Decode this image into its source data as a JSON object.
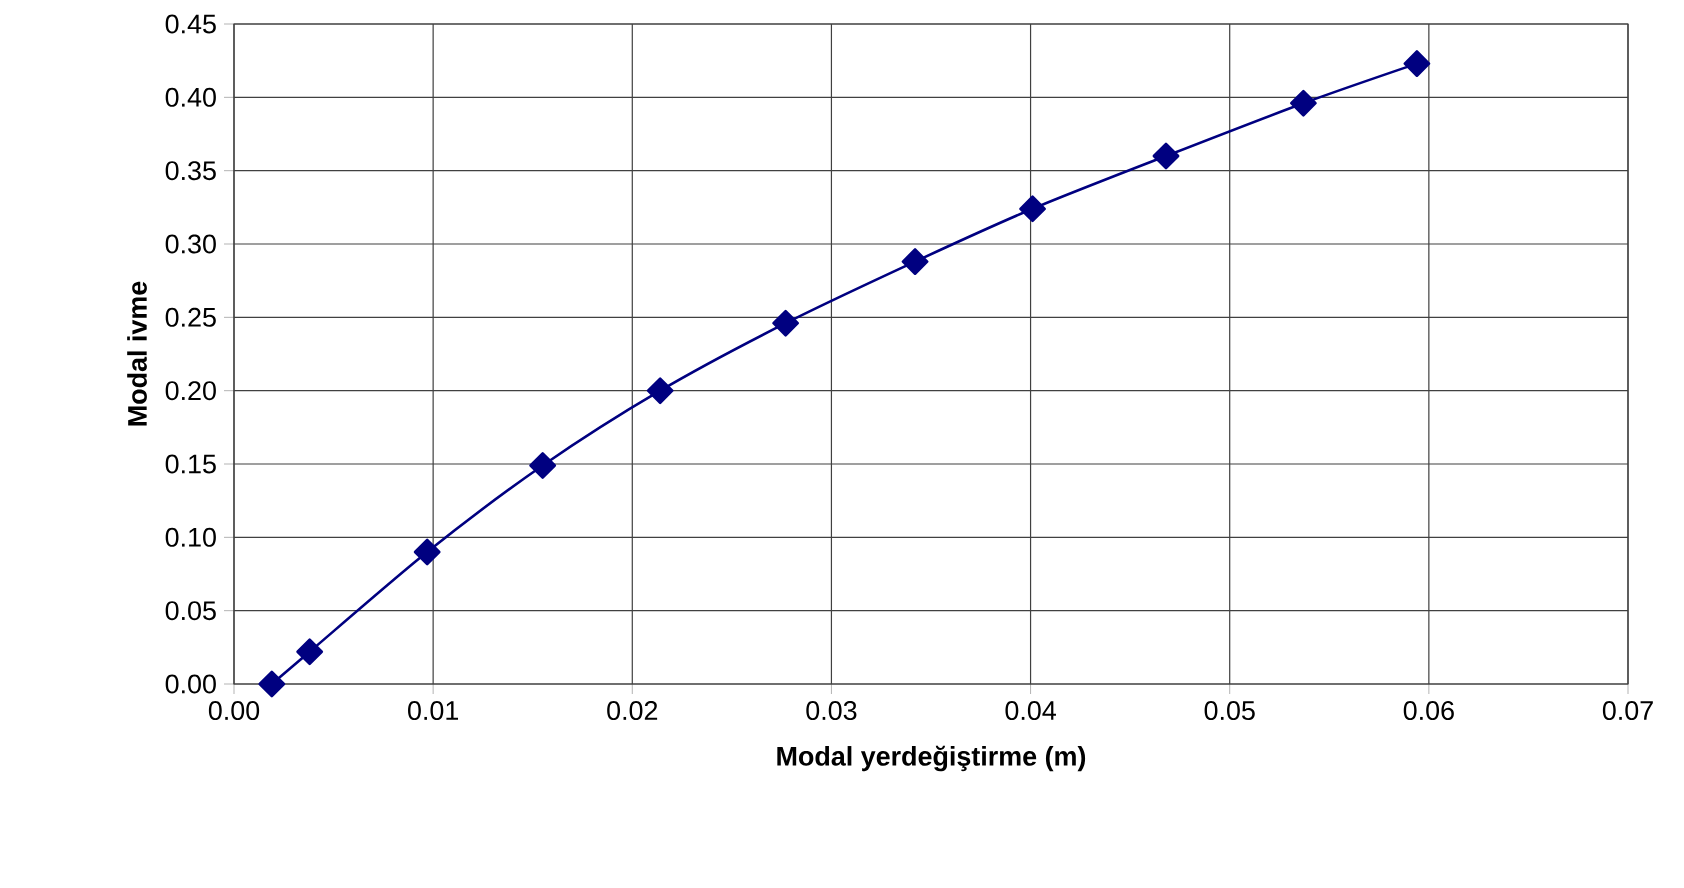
{
  "chart_data": {
    "type": "line",
    "xlabel": "Modal yerdeğiştirme (m)",
    "ylabel": "Modal ivme",
    "series": [
      {
        "color": "#000080",
        "x": [
          0.0019,
          0.0038,
          0.0097,
          0.0155,
          0.0214,
          0.0277,
          0.0342,
          0.0401,
          0.0468,
          0.0537,
          0.0594
        ],
        "values": [
          0.0,
          0.022,
          0.09,
          0.149,
          0.2,
          0.246,
          0.288,
          0.324,
          0.36,
          0.396,
          0.423
        ]
      }
    ],
    "xlim": [
      0,
      0.07
    ],
    "ylim": [
      0,
      0.45
    ],
    "xticks": [
      {
        "value": 0,
        "label": "0.00"
      },
      {
        "value": 0.01,
        "label": "0.01"
      },
      {
        "value": 0.02,
        "label": "0.02"
      },
      {
        "value": 0.03,
        "label": "0.03"
      },
      {
        "value": 0.04,
        "label": "0.04"
      },
      {
        "value": 0.05,
        "label": "0.05"
      },
      {
        "value": 0.06,
        "label": "0.06"
      },
      {
        "value": 0.07,
        "label": "0.07"
      }
    ],
    "yticks": [
      {
        "value": 0,
        "label": "0.00"
      },
      {
        "value": 0.05,
        "label": "0.05"
      },
      {
        "value": 0.1,
        "label": "0.10"
      },
      {
        "value": 0.15,
        "label": "0.15"
      },
      {
        "value": 0.2,
        "label": "0.20"
      },
      {
        "value": 0.25,
        "label": "0.25"
      },
      {
        "value": 0.3,
        "label": "0.30"
      },
      {
        "value": 0.35,
        "label": "0.35"
      },
      {
        "value": 0.4,
        "label": "0.40"
      },
      {
        "value": 0.45,
        "label": "0.45"
      }
    ],
    "grid": true,
    "marker": "diamond",
    "line_style": "solid"
  }
}
